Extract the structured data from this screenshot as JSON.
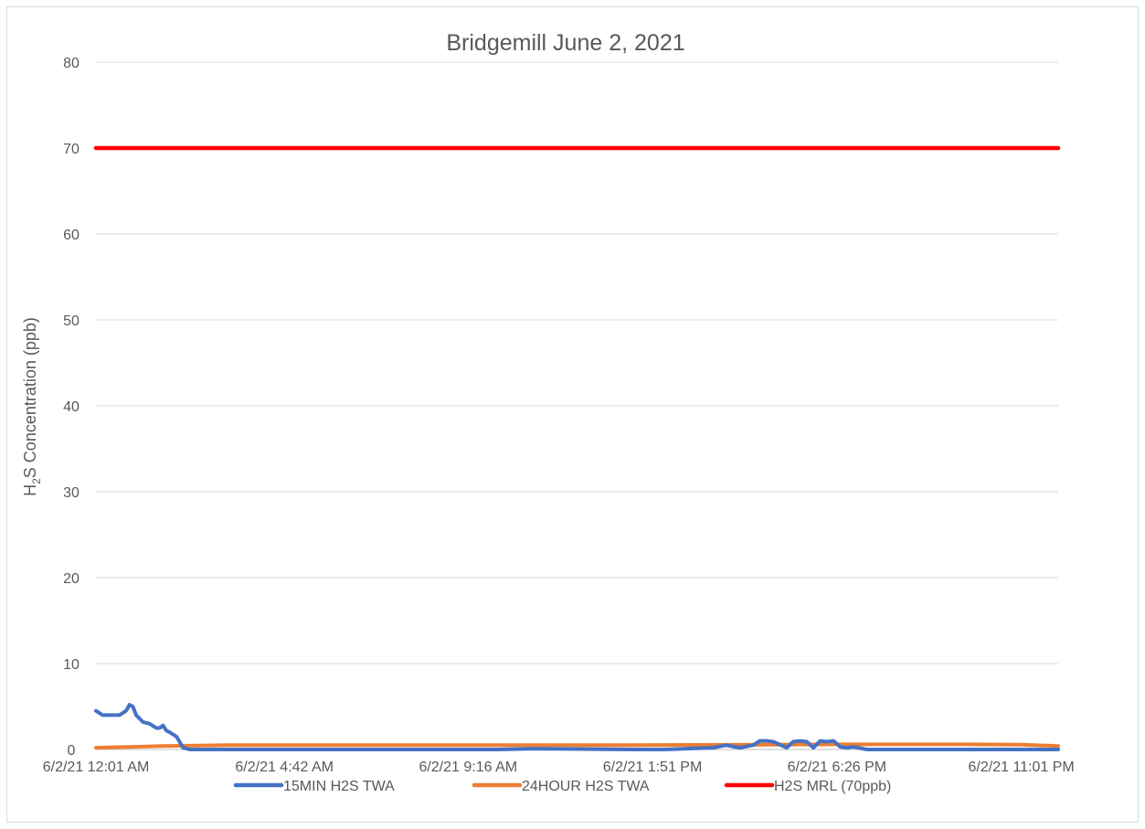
{
  "chart_data": {
    "type": "line",
    "title": "Bridgemill June 2, 2021",
    "ylabel": {
      "main": "H",
      "sub": "2",
      "rest": "S Concentration (ppb)"
    },
    "xlabel": "",
    "ylim": [
      0,
      80
    ],
    "yticks": [
      0,
      10,
      20,
      30,
      40,
      50,
      60,
      70,
      80
    ],
    "x_range": [
      0,
      1435
    ],
    "x_ticks": [
      {
        "t": 0,
        "label": "6/2/21 12:01 AM"
      },
      {
        "t": 281,
        "label": "6/2/21 4:42 AM"
      },
      {
        "t": 555,
        "label": "6/2/21 9:16 AM"
      },
      {
        "t": 830,
        "label": "6/2/21 1:51 PM"
      },
      {
        "t": 1105,
        "label": "6/2/21 6:26 PM"
      },
      {
        "t": 1380,
        "label": "6/2/21 11:01 PM"
      }
    ],
    "grid": true,
    "legend_position": "bottom",
    "series": [
      {
        "name": "15MIN H2S TWA",
        "color": "#4472C4",
        "x": [
          0,
          10,
          20,
          35,
          45,
          50,
          55,
          60,
          70,
          80,
          90,
          95,
          100,
          105,
          110,
          120,
          130,
          140,
          200,
          600,
          650,
          800,
          850,
          880,
          920,
          940,
          960,
          980,
          990,
          1000,
          1010,
          1030,
          1040,
          1050,
          1060,
          1070,
          1080,
          1090,
          1100,
          1110,
          1120,
          1130,
          1150,
          1200,
          1300,
          1435
        ],
        "y": [
          4.5,
          4.0,
          4.0,
          4.0,
          4.5,
          5.2,
          5.0,
          4.0,
          3.2,
          3.0,
          2.5,
          2.5,
          2.8,
          2.2,
          2.0,
          1.5,
          0.2,
          0.0,
          0.0,
          0.0,
          0.1,
          0.0,
          0.0,
          0.1,
          0.2,
          0.5,
          0.2,
          0.5,
          1.0,
          1.0,
          0.9,
          0.2,
          0.9,
          1.0,
          0.9,
          0.2,
          1.0,
          0.9,
          1.0,
          0.3,
          0.2,
          0.3,
          0.0,
          0.0,
          0.0,
          0.0
        ]
      },
      {
        "name": "24HOUR H2S TWA",
        "color": "#ED7D31",
        "x": [
          0,
          50,
          100,
          150,
          200,
          400,
          800,
          1000,
          1100,
          1300,
          1380,
          1435
        ],
        "y": [
          0.2,
          0.3,
          0.4,
          0.45,
          0.5,
          0.5,
          0.5,
          0.55,
          0.6,
          0.6,
          0.55,
          0.4
        ]
      },
      {
        "name": "H2S MRL (70ppb)",
        "color": "#FF0000",
        "x": [
          0,
          1435
        ],
        "y": [
          70,
          70
        ]
      }
    ]
  }
}
